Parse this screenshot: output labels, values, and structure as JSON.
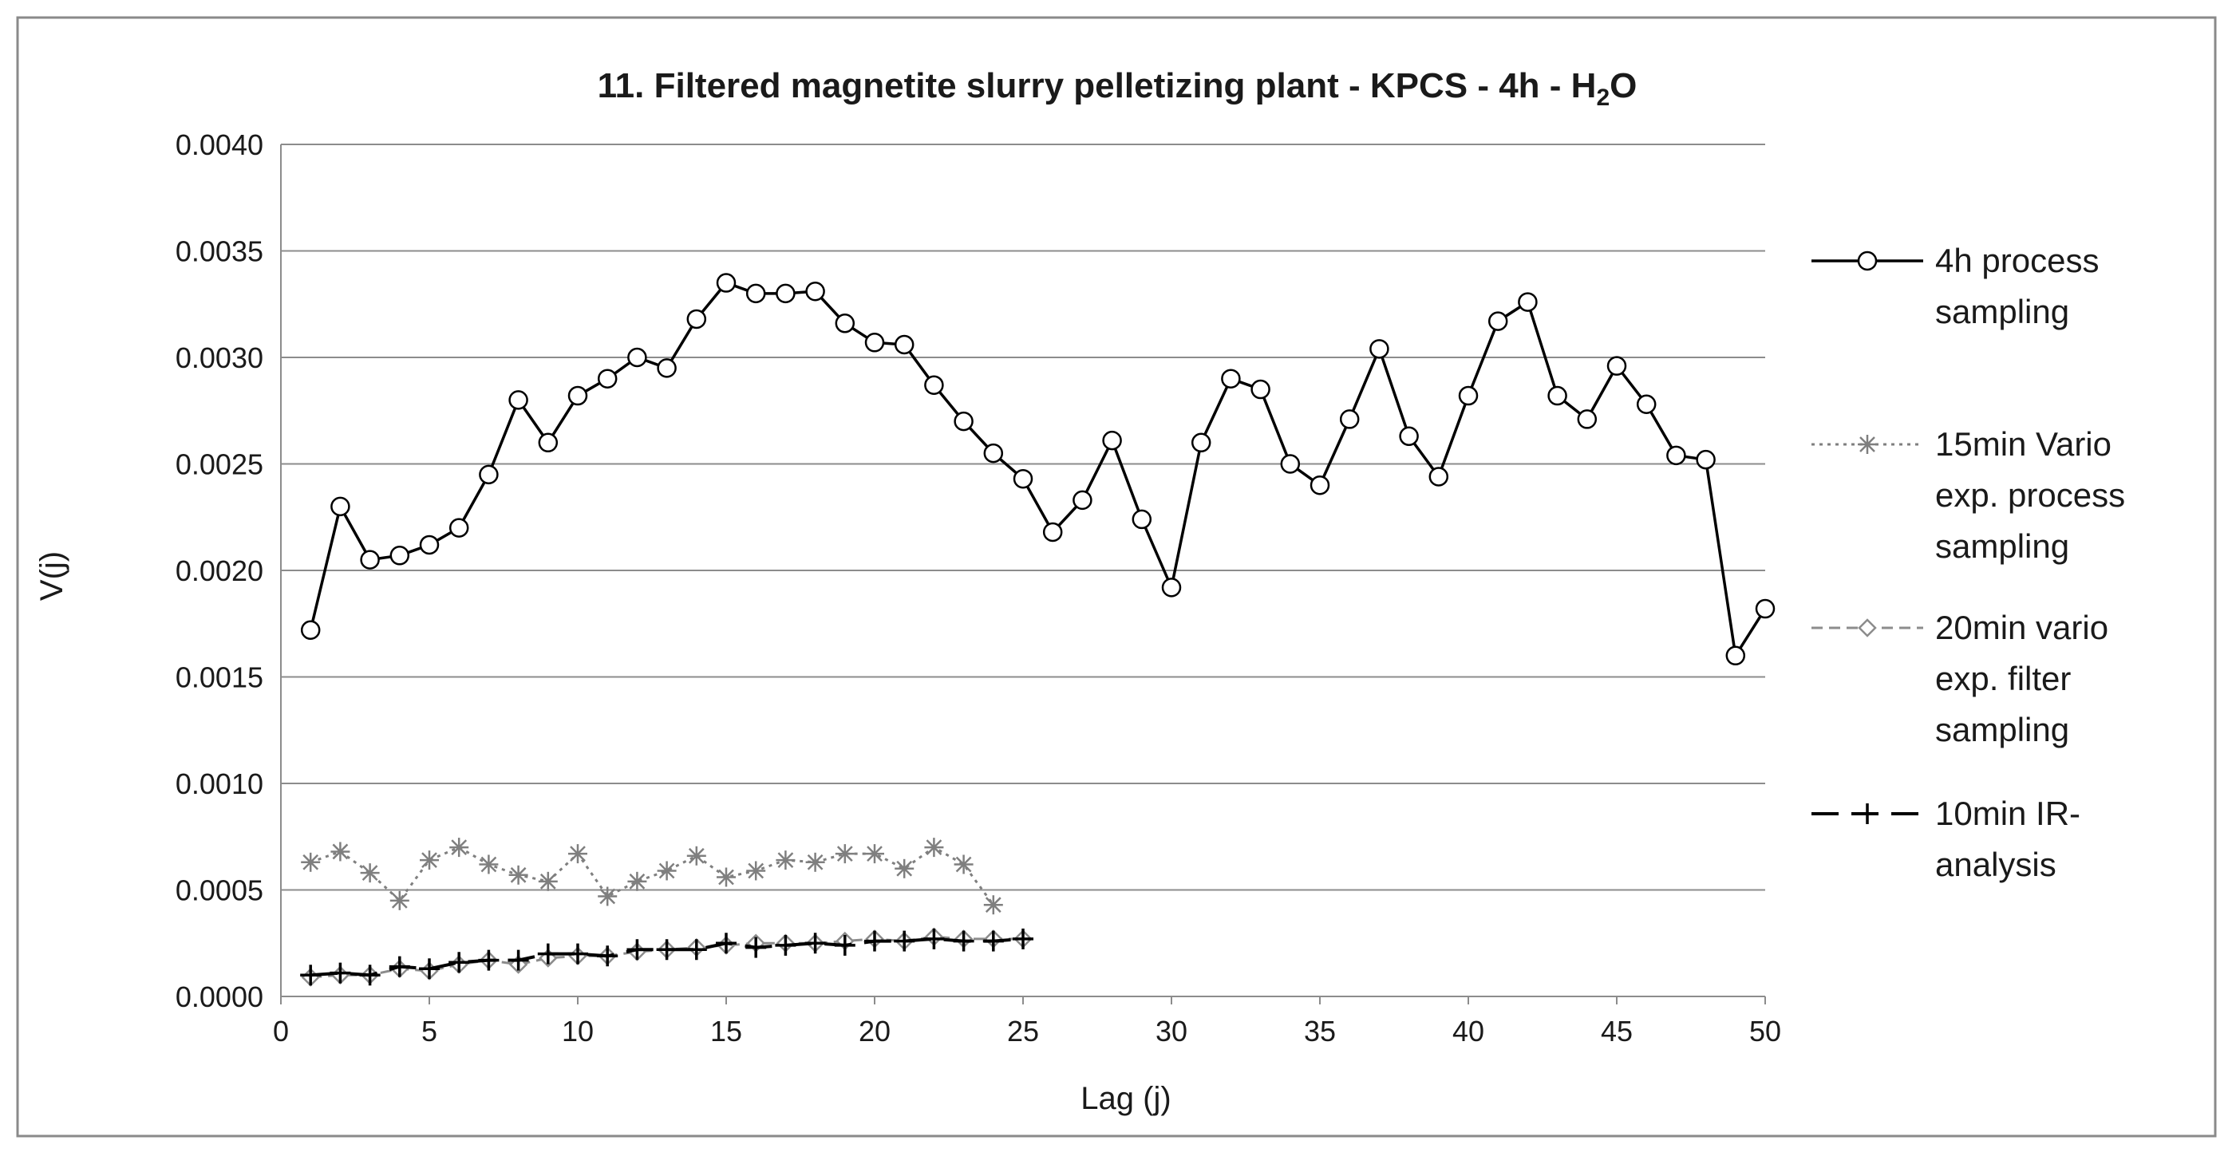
{
  "chart_data": {
    "type": "line",
    "title": "11. Filtered magnetite slurry pelletizing plant - KPCS - 4h - H",
    "title_subscript": "2",
    "title_suffix": "O",
    "xlabel": "Lag (j)",
    "ylabel": "V(j)",
    "xlim": [
      0,
      50
    ],
    "ylim": [
      0,
      0.004
    ],
    "xticks": [
      0,
      5,
      10,
      15,
      20,
      25,
      30,
      35,
      40,
      45,
      50
    ],
    "yticks": [
      0,
      0.0005,
      0.001,
      0.0015,
      0.002,
      0.0025,
      0.003,
      0.0035,
      0.004
    ],
    "ytick_labels": [
      "0.0000",
      "0.0005",
      "0.0010",
      "0.0015",
      "0.0020",
      "0.0025",
      "0.0030",
      "0.0035",
      "0.0040"
    ],
    "grid": "horizontal",
    "legend_position": "right",
    "series": [
      {
        "name": "4h process sampling",
        "legend_lines": [
          "4h process",
          "sampling"
        ],
        "color": "#000000",
        "line_style": "solid",
        "marker": "circle",
        "x": [
          1,
          2,
          3,
          4,
          5,
          6,
          7,
          8,
          9,
          10,
          11,
          12,
          13,
          14,
          15,
          16,
          17,
          18,
          19,
          20,
          21,
          22,
          23,
          24,
          25,
          26,
          27,
          28,
          29,
          30,
          31,
          32,
          33,
          34,
          35,
          36,
          37,
          38,
          39,
          40,
          41,
          42,
          43,
          44,
          45,
          46,
          47,
          48,
          49,
          50
        ],
        "values": [
          0.00172,
          0.0023,
          0.00205,
          0.00207,
          0.00212,
          0.0022,
          0.00245,
          0.0028,
          0.0026,
          0.00282,
          0.0029,
          0.003,
          0.00295,
          0.00318,
          0.00335,
          0.0033,
          0.0033,
          0.00331,
          0.00316,
          0.00307,
          0.00306,
          0.00287,
          0.0027,
          0.00255,
          0.00243,
          0.00218,
          0.00233,
          0.00261,
          0.00224,
          0.00192,
          0.0026,
          0.0029,
          0.00285,
          0.0025,
          0.0024,
          0.00271,
          0.00304,
          0.00263,
          0.00244,
          0.00282,
          0.00317,
          0.00326,
          0.00282,
          0.00271,
          0.00296,
          0.00278,
          0.00254,
          0.00252,
          0.0016,
          0.00182
        ]
      },
      {
        "name": "15min Vario exp. process sampling",
        "legend_lines": [
          "15min Vario",
          "exp. process",
          "sampling"
        ],
        "color": "#7f7f7f",
        "line_style": "dotted",
        "marker": "asterisk",
        "x": [
          1,
          2,
          3,
          4,
          5,
          6,
          7,
          8,
          9,
          10,
          11,
          12,
          13,
          14,
          15,
          16,
          17,
          18,
          19,
          20,
          21,
          22,
          23,
          24
        ],
        "values": [
          0.00063,
          0.00068,
          0.00058,
          0.00045,
          0.00064,
          0.0007,
          0.00062,
          0.00057,
          0.00054,
          0.00067,
          0.00047,
          0.00054,
          0.00059,
          0.00066,
          0.00056,
          0.00059,
          0.00064,
          0.00063,
          0.00067,
          0.00067,
          0.0006,
          0.0007,
          0.00062,
          0.00043
        ]
      },
      {
        "name": "20min vario exp. filter sampling",
        "legend_lines": [
          "20min vario",
          "exp. filter",
          "sampling"
        ],
        "color": "#8c8c8c",
        "line_style": "dashed",
        "marker": "diamond",
        "x": [
          1,
          2,
          3,
          4,
          5,
          6,
          7,
          8,
          9,
          10,
          11,
          12,
          13,
          14,
          15,
          16,
          17,
          18,
          19,
          20,
          21,
          22,
          23,
          24,
          25
        ],
        "values": [
          9e-05,
          0.0001,
          0.0001,
          0.00013,
          0.00012,
          0.00015,
          0.00017,
          0.00015,
          0.00018,
          0.00019,
          0.00019,
          0.00021,
          0.00022,
          0.00023,
          0.00024,
          0.00025,
          0.00025,
          0.00025,
          0.00026,
          0.00027,
          0.00026,
          0.00028,
          0.00027,
          0.00027,
          0.00027
        ]
      },
      {
        "name": "10min IR-analysis",
        "legend_lines": [
          "10min IR-",
          "analysis"
        ],
        "color": "#000000",
        "line_style": "longdash",
        "marker": "plus",
        "x": [
          1,
          2,
          3,
          4,
          5,
          6,
          7,
          8,
          9,
          10,
          11,
          12,
          13,
          14,
          15,
          16,
          17,
          18,
          19,
          20,
          21,
          22,
          23,
          24,
          25
        ],
        "values": [
          0.0001,
          0.00011,
          0.0001,
          0.00014,
          0.00013,
          0.00016,
          0.00017,
          0.00017,
          0.0002,
          0.0002,
          0.00019,
          0.00022,
          0.00022,
          0.00022,
          0.00025,
          0.00023,
          0.00024,
          0.00025,
          0.00024,
          0.00026,
          0.00026,
          0.00027,
          0.00026,
          0.00026,
          0.00027
        ]
      }
    ]
  }
}
